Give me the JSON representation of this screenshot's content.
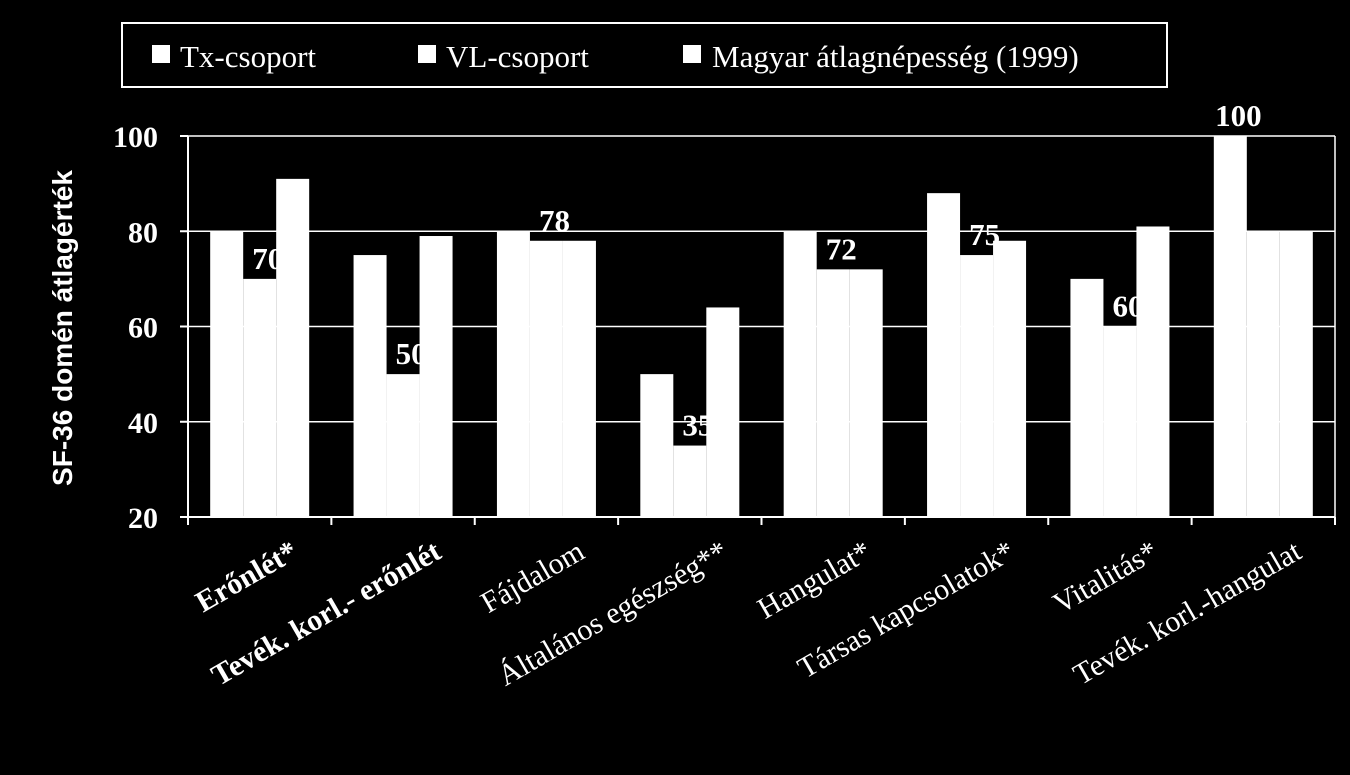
{
  "colors": {
    "background": "#000000",
    "bars": "#ffffff",
    "axis": "#ffffff",
    "text": "#ffffff"
  },
  "chart_data": {
    "type": "bar",
    "title": "",
    "xlabel": "",
    "ylabel": "SF-36 domén átlagérték",
    "ylim": [
      20,
      100
    ],
    "yticks": [
      "20",
      "40",
      "60",
      "80",
      "100"
    ],
    "grid": true,
    "legend_placement": "top",
    "categories": [
      "Erőnlét*",
      "Tevék. korl.- erőnlét",
      "Fájdalom",
      "Általános egészség**",
      "Hangulat*",
      "Társas kapcsolatok*",
      "Vitalitás*",
      "Tevék. korl.-hangulat"
    ],
    "series": [
      {
        "name": "Tx-csoport",
        "values": [
          80,
          75,
          80,
          50,
          80,
          88,
          70,
          100
        ]
      },
      {
        "name": "VL-csoport",
        "values": [
          70,
          50,
          78,
          35,
          72,
          75,
          60,
          80
        ]
      },
      {
        "name": "Magyar átlagnépesség (1999)",
        "values": [
          91,
          79,
          78,
          64,
          72,
          78,
          81,
          80
        ]
      }
    ],
    "data_labels": {
      "VL-csoport": [
        "70",
        "50",
        "78",
        "35",
        "72",
        "75",
        "60",
        ""
      ],
      "Tx-csoport": [
        "",
        "",
        "",
        "",
        "",
        "",
        "",
        "100"
      ]
    }
  }
}
